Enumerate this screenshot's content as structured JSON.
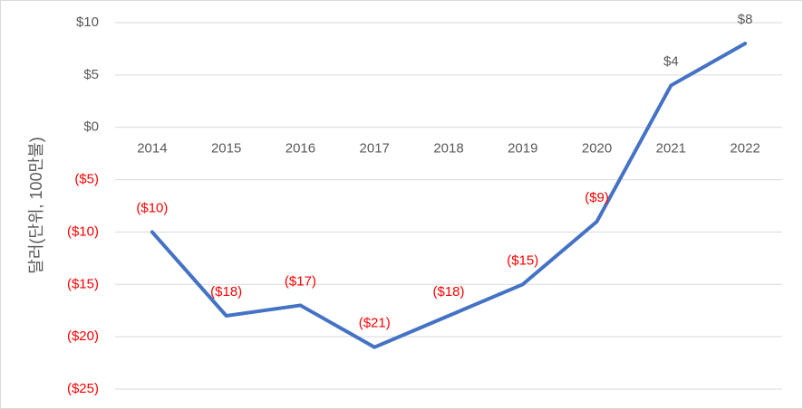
{
  "chart_data": {
    "type": "line",
    "ylabel": "달러(단위, 100만불)",
    "categories": [
      "2014",
      "2015",
      "2016",
      "2017",
      "2018",
      "2019",
      "2020",
      "2021",
      "2022"
    ],
    "series": [
      {
        "values": [
          -10,
          -18,
          -17,
          -21,
          -18,
          -15,
          -9,
          4,
          8
        ]
      }
    ],
    "data_labels": [
      "($10)",
      "($18)",
      "($17)",
      "($21)",
      "($18)",
      "($15)",
      "($9)",
      "$4",
      "$8"
    ],
    "y_ticks": [
      {
        "value": 10,
        "label": "$10"
      },
      {
        "value": 5,
        "label": "$5"
      },
      {
        "value": 0,
        "label": "$0"
      },
      {
        "value": -5,
        "label": "($5)"
      },
      {
        "value": -10,
        "label": "($10)"
      },
      {
        "value": -15,
        "label": "($15)"
      },
      {
        "value": -20,
        "label": "($20)"
      },
      {
        "value": -25,
        "label": "($25)"
      }
    ],
    "ylim": [
      -25,
      10
    ],
    "grid": true,
    "legend": "none",
    "colors": {
      "line": "#4472c4",
      "negative_text": "#ff0000",
      "positive_text": "#595959",
      "grid": "#d9d9d9"
    }
  }
}
